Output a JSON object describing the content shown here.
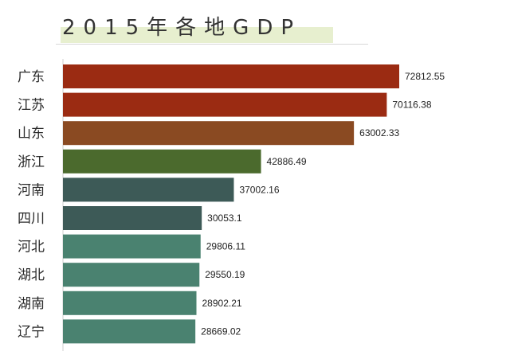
{
  "chart_data": {
    "type": "bar",
    "orientation": "horizontal",
    "title": "2015年各地GDP",
    "categories": [
      "广东",
      "江苏",
      "山东",
      "浙江",
      "河南",
      "四川",
      "河北",
      "湖北",
      "湖南",
      "辽宁"
    ],
    "values": [
      72812.55,
      70116.38,
      63002.33,
      42886.49,
      37002.16,
      30053.1,
      29806.11,
      29550.19,
      28902.21,
      28669.02
    ],
    "value_labels": [
      "72812.55",
      "70116.38",
      "63002.33",
      "42886.49",
      "37002.16",
      "30053.1",
      "29806.11",
      "29550.19",
      "28902.21",
      "28669.02"
    ],
    "colors": [
      "#9b2b12",
      "#9b2b12",
      "#8a4a22",
      "#4b6a2d",
      "#3d5a57",
      "#3d5a57",
      "#4a8270",
      "#4a8270",
      "#4a8270",
      "#4a8270"
    ],
    "xlim": [
      0,
      72812.55
    ],
    "grid": false,
    "legend": "none"
  }
}
